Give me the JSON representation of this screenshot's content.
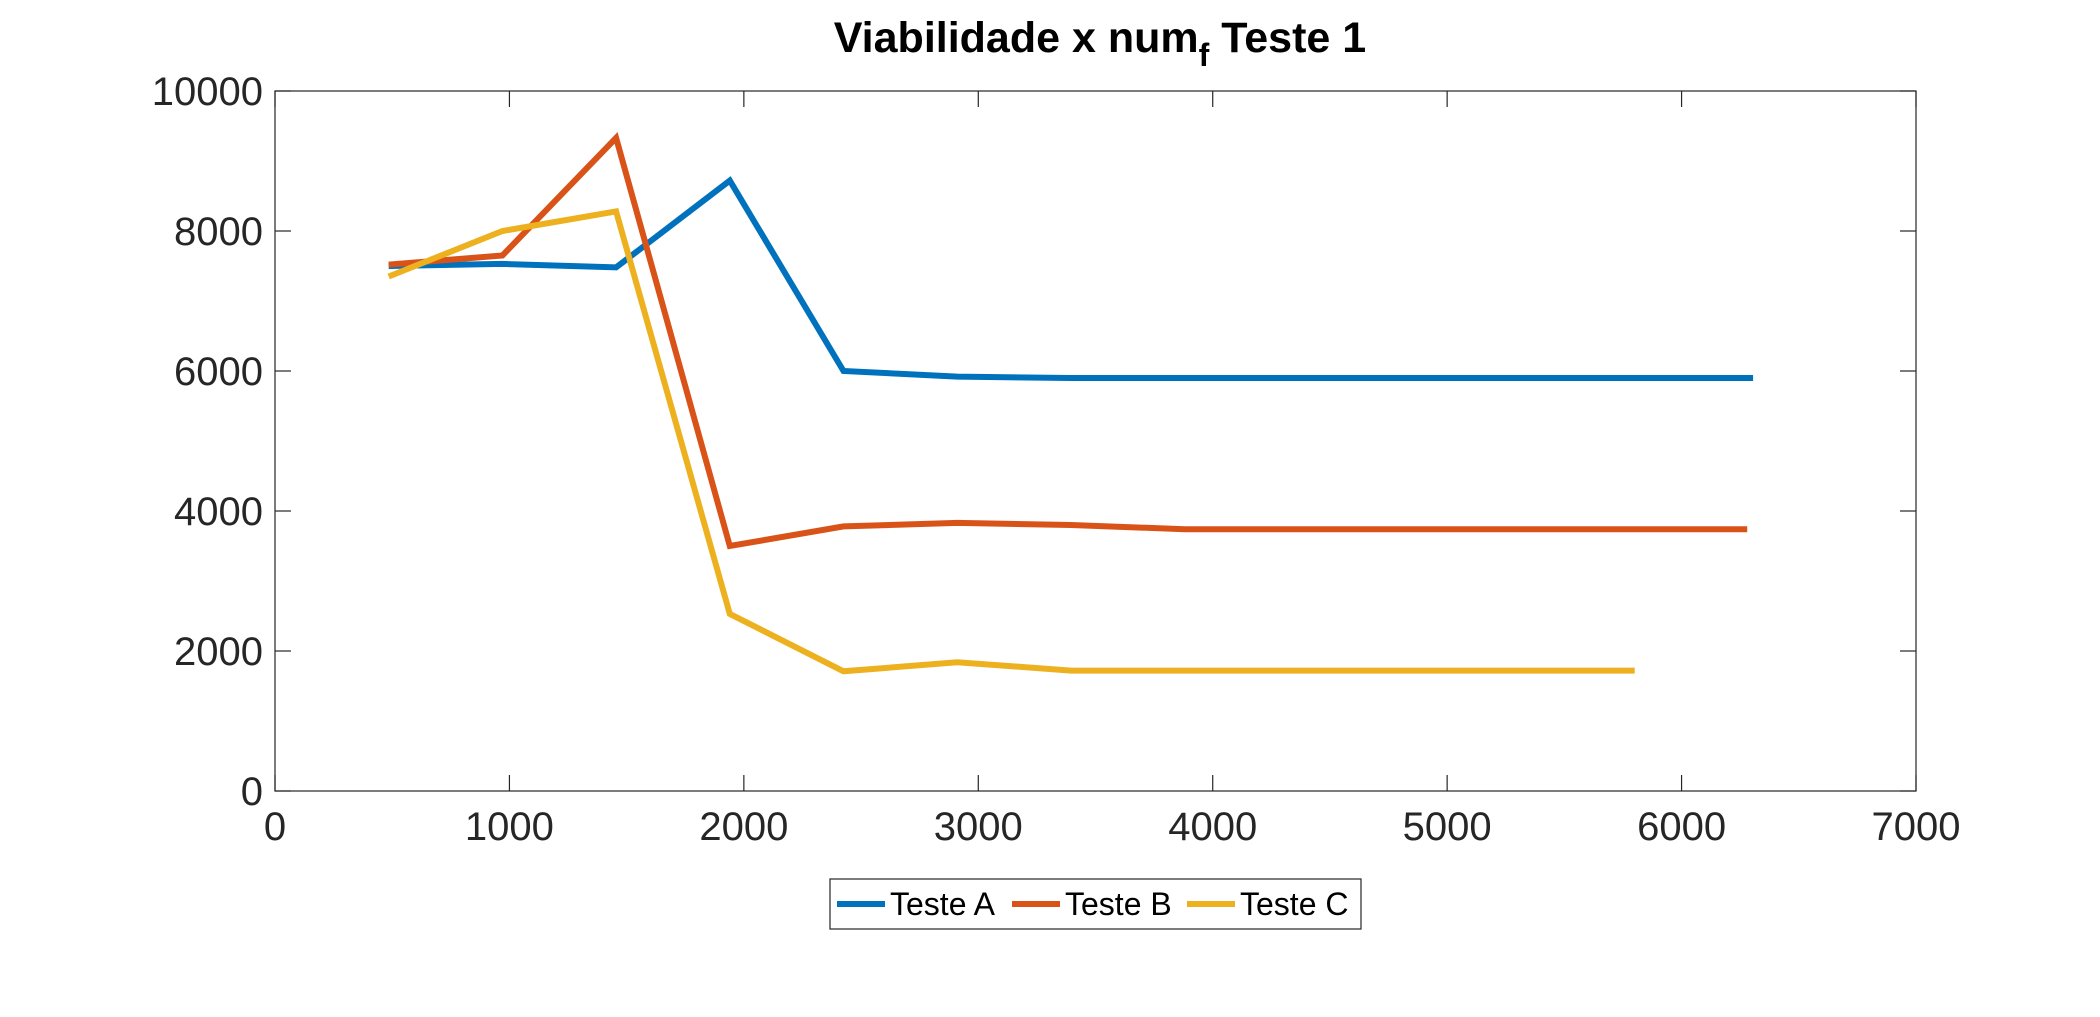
{
  "chart_data": {
    "type": "line",
    "title": {
      "main": "Viabilidade x num",
      "subscript": "f",
      "suffix": " Teste 1"
    },
    "xlabel": "",
    "ylabel": "",
    "xlim": [
      0,
      7000
    ],
    "ylim": [
      0,
      10000
    ],
    "xticks": [
      0,
      1000,
      2000,
      3000,
      4000,
      5000,
      6000,
      7000
    ],
    "yticks": [
      0,
      2000,
      4000,
      6000,
      8000,
      10000
    ],
    "xtick_labels": [
      "0",
      "1000",
      "2000",
      "3000",
      "4000",
      "5000",
      "6000",
      "7000"
    ],
    "ytick_labels": [
      "0",
      "2000",
      "4000",
      "6000",
      "8000",
      "10000"
    ],
    "grid": false,
    "legend_placement": "bottom-center, below axes, horizontal",
    "series": [
      {
        "name": "Teste A",
        "color": "#0072BD",
        "points": [
          [
            485,
            7500
          ],
          [
            970,
            7530
          ],
          [
            1455,
            7480
          ],
          [
            1940,
            8720
          ],
          [
            2425,
            6000
          ],
          [
            2910,
            5920
          ],
          [
            3395,
            5900
          ],
          [
            3880,
            5900
          ],
          [
            4365,
            5900
          ],
          [
            4850,
            5900
          ],
          [
            5335,
            5900
          ],
          [
            5820,
            5900
          ],
          [
            6305,
            5900
          ]
        ]
      },
      {
        "name": "Teste B",
        "color": "#D95319",
        "points": [
          [
            485,
            7520
          ],
          [
            970,
            7650
          ],
          [
            1455,
            9330
          ],
          [
            1940,
            3500
          ],
          [
            2425,
            3780
          ],
          [
            2910,
            3830
          ],
          [
            3395,
            3800
          ],
          [
            3880,
            3740
          ],
          [
            4365,
            3740
          ],
          [
            4850,
            3740
          ],
          [
            5335,
            3740
          ],
          [
            5820,
            3740
          ],
          [
            6280,
            3740
          ]
        ]
      },
      {
        "name": "Teste C",
        "color": "#EDB120",
        "points": [
          [
            485,
            7350
          ],
          [
            970,
            8000
          ],
          [
            1455,
            8280
          ],
          [
            1940,
            2530
          ],
          [
            2425,
            1710
          ],
          [
            2910,
            1840
          ],
          [
            3395,
            1720
          ],
          [
            3880,
            1720
          ],
          [
            4365,
            1720
          ],
          [
            4850,
            1720
          ],
          [
            5335,
            1720
          ],
          [
            5800,
            1720
          ]
        ]
      }
    ]
  }
}
